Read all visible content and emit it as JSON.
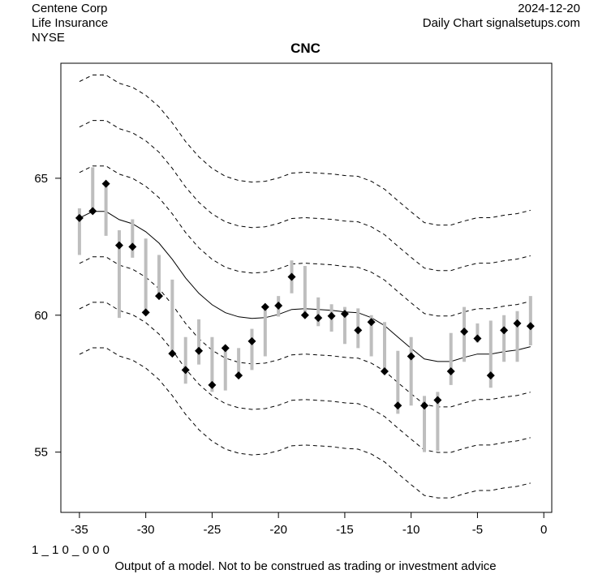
{
  "header": {
    "company": "Centene Corp",
    "sector": "Life Insurance",
    "exchange": "NYSE",
    "date": "2024-12-20",
    "source": "Daily Chart signalsetups.com"
  },
  "footer": {
    "code": "1 _ 1 0 _ 0 0 0",
    "disclaimer": "Output of a model. Not to be construed as trading or investment advice"
  },
  "chart_data": {
    "type": "line",
    "title": "CNC",
    "xlabel": "",
    "ylabel": "",
    "xlim": [
      -36.4,
      0.6
    ],
    "ylim": [
      52.8,
      69.2
    ],
    "xticks": [
      -35,
      -30,
      -25,
      -20,
      -15,
      -10,
      -5,
      0
    ],
    "yticks": [
      55,
      60,
      65
    ],
    "x": [
      -35,
      -34,
      -33,
      -32,
      -31,
      -30,
      -29,
      -28,
      -27,
      -26,
      -25,
      -24,
      -23,
      -22,
      -21,
      -20,
      -19,
      -18,
      -17,
      -16,
      -15,
      -14,
      -13,
      -12,
      -11,
      -10,
      -9,
      -8,
      -7,
      -6,
      -5,
      -4,
      -3,
      -2,
      -1
    ],
    "close": [
      63.55,
      63.8,
      64.8,
      62.55,
      62.5,
      60.1,
      60.7,
      58.6,
      58.0,
      58.7,
      57.45,
      58.8,
      57.8,
      59.05,
      60.3,
      60.35,
      61.4,
      60.0,
      59.9,
      59.97,
      60.05,
      59.45,
      59.75,
      57.95,
      56.7,
      58.5,
      56.7,
      56.9,
      57.95,
      59.4,
      59.15,
      57.8,
      59.45,
      59.7,
      59.6
    ],
    "high": [
      63.9,
      65.4,
      64.8,
      63.1,
      63.5,
      62.8,
      62.2,
      61.3,
      59.2,
      59.85,
      59.2,
      58.8,
      58.8,
      59.5,
      60.3,
      60.7,
      62.0,
      61.8,
      60.65,
      60.4,
      60.3,
      60.25,
      60.0,
      59.75,
      58.7,
      59.2,
      57.05,
      57.2,
      59.35,
      60.3,
      59.7,
      59.8,
      60.0,
      60.15,
      60.7
    ],
    "low": [
      62.2,
      63.8,
      62.9,
      59.9,
      62.1,
      60.1,
      60.7,
      58.6,
      57.5,
      58.2,
      57.2,
      57.25,
      57.8,
      58.0,
      58.5,
      59.95,
      60.8,
      60.0,
      59.6,
      59.4,
      58.95,
      58.8,
      58.5,
      57.95,
      56.4,
      56.7,
      55.0,
      55.05,
      57.45,
      58.3,
      59.0,
      57.35,
      58.3,
      58.3,
      58.9
    ],
    "model_mid": [
      63.55,
      63.79,
      63.79,
      63.49,
      63.34,
      63.05,
      62.63,
      62.04,
      61.36,
      60.8,
      60.38,
      60.09,
      59.94,
      59.88,
      59.91,
      60.03,
      60.21,
      60.24,
      60.21,
      60.18,
      60.12,
      60.09,
      59.91,
      59.62,
      59.2,
      58.79,
      58.4,
      58.31,
      58.31,
      58.46,
      58.58,
      58.58,
      58.67,
      58.73,
      58.85
    ],
    "band_offsets": [
      -4.98,
      -3.32,
      -1.66,
      1.66,
      3.32,
      4.98
    ],
    "colors": {
      "range": "#bebebe",
      "close": "#000000",
      "mid": "#000000",
      "band": "#000000"
    }
  }
}
